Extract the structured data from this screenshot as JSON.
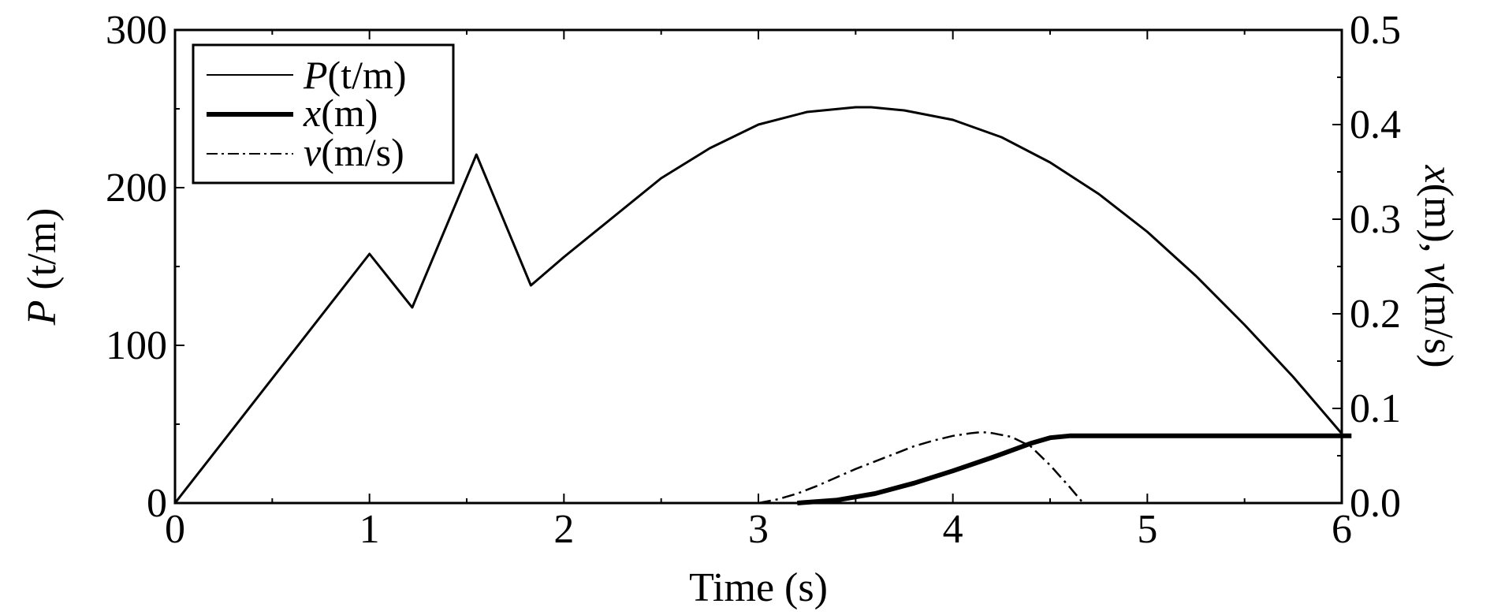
{
  "chart_data": {
    "type": "line",
    "xlabel": "Time (s)",
    "ylabel": {
      "italic": "P",
      "rest": " (t/m)"
    },
    "y2label": {
      "x": "x",
      "mid": "(m), ",
      "v": "v",
      "end": "(m/s)"
    },
    "xlim": [
      0,
      6
    ],
    "ylim": [
      0,
      300
    ],
    "y2lim": [
      0,
      0.5
    ],
    "xticks": [
      "0",
      "1",
      "2",
      "3",
      "4",
      "5",
      "6"
    ],
    "yticks": [
      "0",
      "100",
      "200",
      "300"
    ],
    "y2ticks": [
      "0.0",
      "0.1",
      "0.2",
      "0.3",
      "0.4",
      "0.5"
    ],
    "grid": false,
    "legend_position": "top-left",
    "series": [
      {
        "name": "P(t/m)",
        "legend": {
          "italic": "P",
          "rest": "(t/m)"
        },
        "axis": "left",
        "style": "thin",
        "x": [
          0,
          1.0,
          1.22,
          1.55,
          1.83,
          2.0,
          2.25,
          2.5,
          2.75,
          3.0,
          3.25,
          3.5,
          3.58,
          3.75,
          4.0,
          4.25,
          4.5,
          4.75,
          5.0,
          5.25,
          5.5,
          5.75,
          6.0
        ],
        "values": [
          0,
          158,
          124,
          221,
          138,
          156,
          181,
          206,
          225,
          240,
          248,
          251,
          251,
          249,
          243,
          232,
          216,
          196,
          172,
          144,
          113,
          80,
          44
        ]
      },
      {
        "name": "x(m)",
        "legend": {
          "italic": "x",
          "rest": "(m)"
        },
        "axis": "right",
        "style": "thick",
        "x": [
          3.2,
          3.4,
          3.6,
          3.8,
          4.0,
          4.2,
          4.4,
          4.5,
          4.6,
          5.0,
          5.5,
          6.0,
          6.05
        ],
        "values": [
          0.0,
          0.003,
          0.01,
          0.021,
          0.034,
          0.048,
          0.063,
          0.069,
          0.071,
          0.071,
          0.071,
          0.071,
          0.071
        ]
      },
      {
        "name": "v(m/s)",
        "legend": {
          "italic": "v",
          "rest": "(m/s)"
        },
        "axis": "right",
        "style": "dashdot",
        "x": [
          3.0,
          3.1,
          3.2,
          3.3,
          3.4,
          3.5,
          3.6,
          3.7,
          3.8,
          3.9,
          4.0,
          4.1,
          4.15,
          4.2,
          4.3,
          4.4,
          4.5,
          4.6,
          4.67
        ],
        "values": [
          0.0,
          0.004,
          0.01,
          0.018,
          0.027,
          0.036,
          0.044,
          0.052,
          0.06,
          0.066,
          0.071,
          0.074,
          0.075,
          0.074,
          0.07,
          0.06,
          0.04,
          0.017,
          0.0
        ]
      }
    ]
  }
}
